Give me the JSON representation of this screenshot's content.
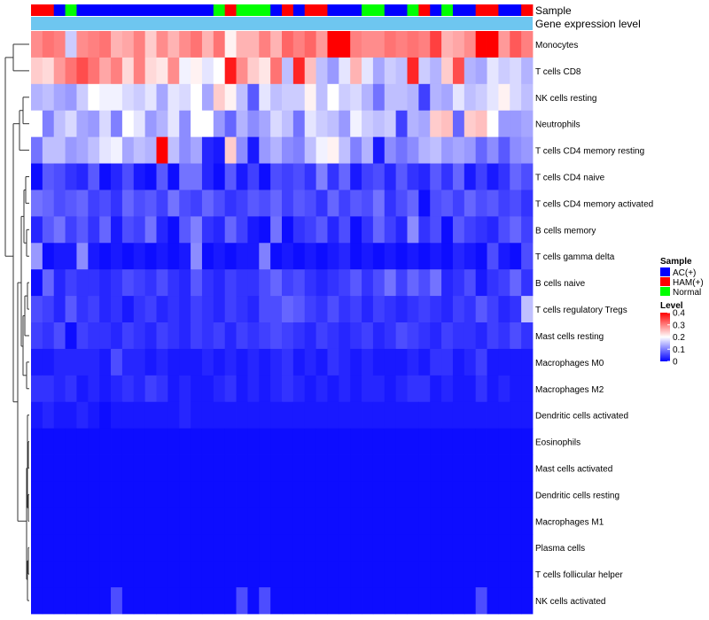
{
  "chart_data": {
    "type": "heatmap",
    "title": "",
    "annotation_tracks": [
      "Sample",
      "Gene expression level"
    ],
    "samples": [
      "HAM(+)",
      "HAM(+)",
      "AC(+)",
      "Normal",
      "AC(+)",
      "AC(+)",
      "AC(+)",
      "AC(+)",
      "AC(+)",
      "AC(+)",
      "AC(+)",
      "AC(+)",
      "AC(+)",
      "AC(+)",
      "AC(+)",
      "AC(+)",
      "Normal",
      "HAM(+)",
      "Normal",
      "Normal",
      "Normal",
      "AC(+)",
      "HAM(+)",
      "AC(+)",
      "HAM(+)",
      "HAM(+)",
      "AC(+)",
      "AC(+)",
      "AC(+)",
      "Normal",
      "Normal",
      "AC(+)",
      "AC(+)",
      "Normal",
      "HAM(+)",
      "AC(+)",
      "Normal",
      "AC(+)",
      "AC(+)",
      "HAM(+)",
      "HAM(+)",
      "AC(+)",
      "AC(+)",
      "HAM(+)"
    ],
    "rows": [
      "Monocytes",
      "T cells CD8",
      "NK cells resting",
      "Neutrophils",
      "T cells CD4 memory resting",
      "T cells CD4 naive",
      "T cells CD4 memory activated",
      "B cells memory",
      "T cells gamma delta",
      "B cells naive",
      "T cells regulatory  Tregs",
      "Mast cells resting",
      "Macrophages M0",
      "Macrophages M2",
      "Dendritic cells activated",
      "Eosinophils",
      "Mast cells activated",
      "Dendritic cells resting",
      "Macrophages M1",
      "Plasma cells",
      "T cells follicular helper",
      "NK cells activated"
    ],
    "values": [
      [
        0.29,
        0.31,
        0.3,
        0.16,
        0.29,
        0.3,
        0.31,
        0.26,
        0.27,
        0.3,
        0.24,
        0.29,
        0.26,
        0.29,
        0.31,
        0.26,
        0.31,
        0.21,
        0.26,
        0.26,
        0.3,
        0.26,
        0.32,
        0.3,
        0.32,
        0.28,
        0.4,
        0.4,
        0.3,
        0.29,
        0.29,
        0.31,
        0.3,
        0.31,
        0.3,
        0.35,
        0.26,
        0.27,
        0.29,
        0.4,
        0.4,
        0.28,
        0.33,
        0.3
      ],
      [
        0.24,
        0.23,
        0.28,
        0.31,
        0.34,
        0.31,
        0.27,
        0.3,
        0.23,
        0.3,
        0.23,
        0.22,
        0.29,
        0.19,
        0.21,
        0.18,
        0.2,
        0.38,
        0.29,
        0.24,
        0.22,
        0.31,
        0.15,
        0.37,
        0.25,
        0.15,
        0.12,
        0.18,
        0.26,
        0.18,
        0.13,
        0.16,
        0.15,
        0.37,
        0.16,
        0.14,
        0.24,
        0.34,
        0.14,
        0.13,
        0.18,
        0.16,
        0.17,
        0.14
      ],
      [
        0.14,
        0.15,
        0.13,
        0.12,
        0.16,
        0.2,
        0.19,
        0.19,
        0.17,
        0.16,
        0.18,
        0.13,
        0.18,
        0.17,
        0.2,
        0.13,
        0.24,
        0.21,
        0.15,
        0.07,
        0.18,
        0.15,
        0.16,
        0.16,
        0.21,
        0.15,
        0.2,
        0.16,
        0.17,
        0.14,
        0.09,
        0.15,
        0.15,
        0.14,
        0.05,
        0.14,
        0.13,
        0.18,
        0.15,
        0.16,
        0.18,
        0.21,
        0.17,
        0.15
      ],
      [
        0.2,
        0.1,
        0.15,
        0.17,
        0.13,
        0.12,
        0.17,
        0.1,
        0.2,
        0.18,
        0.12,
        0.14,
        0.18,
        0.11,
        0.2,
        0.2,
        0.12,
        0.08,
        0.14,
        0.11,
        0.13,
        0.17,
        0.15,
        0.09,
        0.18,
        0.16,
        0.15,
        0.12,
        0.19,
        0.16,
        0.15,
        0.16,
        0.05,
        0.14,
        0.13,
        0.24,
        0.25,
        0.08,
        0.24,
        0.25,
        0.2,
        0.12,
        0.12,
        0.13
      ],
      [
        0.09,
        0.15,
        0.15,
        0.12,
        0.13,
        0.15,
        0.18,
        0.19,
        0.13,
        0.15,
        0.14,
        0.4,
        0.15,
        0.11,
        0.13,
        0.03,
        0.02,
        0.24,
        0.11,
        0.02,
        0.12,
        0.14,
        0.11,
        0.1,
        0.15,
        0.19,
        0.21,
        0.15,
        0.1,
        0.14,
        0.02,
        0.11,
        0.09,
        0.11,
        0.14,
        0.15,
        0.12,
        0.13,
        0.12,
        0.08,
        0.11,
        0.07,
        0.11,
        0.12
      ],
      [
        0.01,
        0.07,
        0.06,
        0.04,
        0.03,
        0.07,
        0.01,
        0.03,
        0.06,
        0.02,
        0.01,
        0.07,
        0.01,
        0.09,
        0.09,
        0.03,
        0.01,
        0.07,
        0.02,
        0.05,
        0.01,
        0.06,
        0.05,
        0.06,
        0.04,
        0.1,
        0.04,
        0.08,
        0.02,
        0.05,
        0.06,
        0.03,
        0.07,
        0.04,
        0.03,
        0.07,
        0.04,
        0.08,
        0.02,
        0.05,
        0.02,
        0.04,
        0.08,
        0.06
      ],
      [
        0.09,
        0.08,
        0.06,
        0.07,
        0.08,
        0.05,
        0.06,
        0.04,
        0.08,
        0.06,
        0.07,
        0.05,
        0.09,
        0.06,
        0.05,
        0.08,
        0.06,
        0.04,
        0.05,
        0.07,
        0.06,
        0.08,
        0.05,
        0.07,
        0.06,
        0.04,
        0.08,
        0.05,
        0.07,
        0.06,
        0.09,
        0.04,
        0.06,
        0.08,
        0.01,
        0.06,
        0.07,
        0.05,
        0.08,
        0.06,
        0.07,
        0.05,
        0.06,
        0.04
      ],
      [
        0.03,
        0.07,
        0.09,
        0.05,
        0.07,
        0.04,
        0.08,
        0.02,
        0.06,
        0.05,
        0.09,
        0.03,
        0.01,
        0.07,
        0.1,
        0.04,
        0.03,
        0.08,
        0.05,
        0.02,
        0.01,
        0.09,
        0.01,
        0.04,
        0.05,
        0.07,
        0.03,
        0.06,
        0.01,
        0.04,
        0.08,
        0.05,
        0.03,
        0.11,
        0.04,
        0.06,
        0.01,
        0.07,
        0.05,
        0.04,
        0.03,
        0.06,
        0.08,
        0.05
      ],
      [
        0.12,
        0.01,
        0.02,
        0.02,
        0.11,
        0.02,
        0.01,
        0.02,
        0.01,
        0.02,
        0.01,
        0.02,
        0.01,
        0.02,
        0.11,
        0.01,
        0.02,
        0.01,
        0.02,
        0.02,
        0.1,
        0.01,
        0.02,
        0.01,
        0.02,
        0.01,
        0.02,
        0.03,
        0.01,
        0.02,
        0.01,
        0.02,
        0.01,
        0.02,
        0.01,
        0.02,
        0.01,
        0.03,
        0.02,
        0.01,
        0.06,
        0.02,
        0.01,
        0.06
      ],
      [
        0.01,
        0.08,
        0.03,
        0.05,
        0.04,
        0.04,
        0.03,
        0.04,
        0.06,
        0.05,
        0.04,
        0.06,
        0.04,
        0.03,
        0.07,
        0.04,
        0.03,
        0.05,
        0.04,
        0.04,
        0.06,
        0.08,
        0.05,
        0.06,
        0.04,
        0.03,
        0.04,
        0.05,
        0.07,
        0.04,
        0.06,
        0.09,
        0.05,
        0.08,
        0.06,
        0.09,
        0.03,
        0.04,
        0.06,
        0.02,
        0.04,
        0.05,
        0.08,
        0.04
      ],
      [
        0.06,
        0.05,
        0.03,
        0.07,
        0.04,
        0.05,
        0.03,
        0.04,
        0.02,
        0.04,
        0.05,
        0.03,
        0.04,
        0.03,
        0.05,
        0.04,
        0.03,
        0.05,
        0.04,
        0.03,
        0.06,
        0.06,
        0.08,
        0.07,
        0.05,
        0.04,
        0.06,
        0.04,
        0.05,
        0.03,
        0.05,
        0.04,
        0.03,
        0.04,
        0.05,
        0.04,
        0.03,
        0.05,
        0.04,
        0.07,
        0.05,
        0.03,
        0.04,
        0.15
      ],
      [
        0.05,
        0.04,
        0.06,
        0.01,
        0.05,
        0.04,
        0.04,
        0.03,
        0.05,
        0.04,
        0.03,
        0.05,
        0.04,
        0.03,
        0.05,
        0.04,
        0.05,
        0.03,
        0.05,
        0.04,
        0.05,
        0.06,
        0.05,
        0.04,
        0.03,
        0.05,
        0.04,
        0.03,
        0.04,
        0.05,
        0.03,
        0.04,
        0.06,
        0.05,
        0.04,
        0.03,
        0.05,
        0.04,
        0.04,
        0.03,
        0.05,
        0.04,
        0.06,
        0.04
      ],
      [
        0.02,
        0.02,
        0.03,
        0.03,
        0.03,
        0.03,
        0.02,
        0.06,
        0.03,
        0.03,
        0.02,
        0.03,
        0.02,
        0.02,
        0.02,
        0.03,
        0.02,
        0.03,
        0.02,
        0.03,
        0.02,
        0.03,
        0.04,
        0.02,
        0.03,
        0.02,
        0.04,
        0.03,
        0.02,
        0.03,
        0.02,
        0.02,
        0.02,
        0.03,
        0.02,
        0.04,
        0.04,
        0.02,
        0.03,
        0.05,
        0.02,
        0.02,
        0.02,
        0.02
      ],
      [
        0.04,
        0.04,
        0.03,
        0.04,
        0.02,
        0.03,
        0.02,
        0.03,
        0.04,
        0.03,
        0.05,
        0.04,
        0.02,
        0.03,
        0.02,
        0.02,
        0.03,
        0.04,
        0.02,
        0.03,
        0.02,
        0.03,
        0.04,
        0.03,
        0.02,
        0.03,
        0.02,
        0.03,
        0.02,
        0.03,
        0.03,
        0.02,
        0.03,
        0.04,
        0.04,
        0.02,
        0.03,
        0.02,
        0.02,
        0.04,
        0.02,
        0.03,
        0.02,
        0.02
      ],
      [
        0.02,
        0.03,
        0.02,
        0.02,
        0.03,
        0.02,
        0.01,
        0.02,
        0.02,
        0.02,
        0.02,
        0.02,
        0.02,
        0.03,
        0.02,
        0.02,
        0.02,
        0.02,
        0.02,
        0.02,
        0.02,
        0.02,
        0.02,
        0.02,
        0.02,
        0.02,
        0.02,
        0.02,
        0.02,
        0.02,
        0.02,
        0.02,
        0.02,
        0.02,
        0.02,
        0.02,
        0.02,
        0.02,
        0.02,
        0.02,
        0.02,
        0.02,
        0.02,
        0.02
      ],
      [
        0.01,
        0.01,
        0.01,
        0.01,
        0.01,
        0.01,
        0.01,
        0.01,
        0.01,
        0.01,
        0.01,
        0.01,
        0.01,
        0.01,
        0.01,
        0.01,
        0.01,
        0.01,
        0.01,
        0.01,
        0.01,
        0.01,
        0.01,
        0.01,
        0.01,
        0.01,
        0.01,
        0.01,
        0.01,
        0.01,
        0.01,
        0.01,
        0.01,
        0.01,
        0.01,
        0.01,
        0.01,
        0.01,
        0.01,
        0.01,
        0.01,
        0.01,
        0.01,
        0.01
      ],
      [
        0.01,
        0.01,
        0.01,
        0.01,
        0.01,
        0.01,
        0.01,
        0.01,
        0.01,
        0.01,
        0.01,
        0.01,
        0.01,
        0.01,
        0.01,
        0.01,
        0.01,
        0.01,
        0.01,
        0.01,
        0.01,
        0.01,
        0.01,
        0.01,
        0.01,
        0.01,
        0.01,
        0.01,
        0.01,
        0.01,
        0.01,
        0.01,
        0.01,
        0.01,
        0.01,
        0.01,
        0.01,
        0.01,
        0.01,
        0.01,
        0.01,
        0.01,
        0.01,
        0.01
      ],
      [
        0.01,
        0.01,
        0.01,
        0.01,
        0.01,
        0.01,
        0.01,
        0.01,
        0.01,
        0.01,
        0.01,
        0.01,
        0.01,
        0.01,
        0.01,
        0.01,
        0.01,
        0.01,
        0.01,
        0.01,
        0.01,
        0.01,
        0.01,
        0.01,
        0.01,
        0.01,
        0.01,
        0.01,
        0.01,
        0.01,
        0.01,
        0.01,
        0.01,
        0.01,
        0.01,
        0.01,
        0.01,
        0.01,
        0.01,
        0.01,
        0.01,
        0.01,
        0.01,
        0.01
      ],
      [
        0.01,
        0.01,
        0.01,
        0.01,
        0.01,
        0.01,
        0.01,
        0.01,
        0.01,
        0.01,
        0.01,
        0.01,
        0.01,
        0.01,
        0.01,
        0.01,
        0.01,
        0.01,
        0.01,
        0.01,
        0.01,
        0.01,
        0.01,
        0.01,
        0.01,
        0.01,
        0.01,
        0.01,
        0.01,
        0.01,
        0.01,
        0.01,
        0.01,
        0.01,
        0.01,
        0.01,
        0.01,
        0.01,
        0.01,
        0.01,
        0.01,
        0.01,
        0.01,
        0.01
      ],
      [
        0.01,
        0.01,
        0.01,
        0.01,
        0.01,
        0.01,
        0.01,
        0.01,
        0.01,
        0.01,
        0.01,
        0.01,
        0.01,
        0.01,
        0.01,
        0.01,
        0.01,
        0.01,
        0.01,
        0.01,
        0.01,
        0.01,
        0.01,
        0.01,
        0.01,
        0.01,
        0.01,
        0.01,
        0.01,
        0.01,
        0.01,
        0.01,
        0.01,
        0.01,
        0.01,
        0.01,
        0.01,
        0.01,
        0.01,
        0.01,
        0.01,
        0.01,
        0.01,
        0.01
      ],
      [
        0.01,
        0.01,
        0.01,
        0.01,
        0.01,
        0.01,
        0.01,
        0.01,
        0.01,
        0.01,
        0.01,
        0.01,
        0.01,
        0.01,
        0.01,
        0.01,
        0.01,
        0.01,
        0.01,
        0.01,
        0.01,
        0.01,
        0.01,
        0.01,
        0.01,
        0.01,
        0.01,
        0.01,
        0.01,
        0.01,
        0.01,
        0.01,
        0.01,
        0.01,
        0.01,
        0.01,
        0.01,
        0.01,
        0.01,
        0.01,
        0.01,
        0.01,
        0.01,
        0.01
      ],
      [
        0.01,
        0.01,
        0.01,
        0.01,
        0.01,
        0.01,
        0.01,
        0.06,
        0.01,
        0.01,
        0.01,
        0.01,
        0.01,
        0.01,
        0.01,
        0.01,
        0.01,
        0.01,
        0.06,
        0.01,
        0.06,
        0.01,
        0.01,
        0.01,
        0.01,
        0.01,
        0.01,
        0.01,
        0.01,
        0.01,
        0.01,
        0.01,
        0.01,
        0.01,
        0.01,
        0.01,
        0.01,
        0.01,
        0.01,
        0.06,
        0.01,
        0.01,
        0.01,
        0.01
      ]
    ],
    "legend_sample": {
      "title": "Sample",
      "entries": [
        {
          "label": "AC(+)",
          "color": "#0000ff"
        },
        {
          "label": "HAM(+)",
          "color": "#ff0000"
        },
        {
          "label": "Normal",
          "color": "#00ff00"
        }
      ]
    },
    "legend_level": {
      "title": "Level",
      "ticks": [
        "0.4",
        "0.3",
        "0.2",
        "0.1",
        "0"
      ],
      "tick_values": [
        0.4,
        0.3,
        0.2,
        0.1,
        0
      ],
      "range": [
        0,
        0.4
      ],
      "colors": {
        "low": "#0000ff",
        "mid": "#ffffff",
        "high": "#ff0000"
      }
    },
    "track_colors": {
      "gene_expression_level": "#6ec6f0"
    }
  }
}
